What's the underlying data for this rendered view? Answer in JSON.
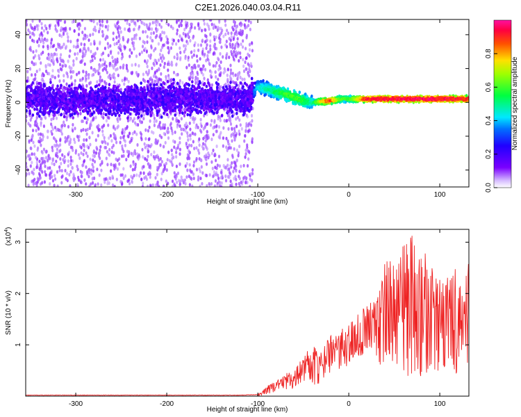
{
  "chart_data": [
    {
      "type": "heatmap",
      "title": "C2E1.2026.040.03.04.R11",
      "xlabel": "Height of straight line (km)",
      "ylabel": "Frequency (Hz)",
      "xlim": [
        -355,
        132
      ],
      "ylim": [
        -50,
        49
      ],
      "x_ticks": [
        -300,
        -200,
        -100,
        0,
        100
      ],
      "x_tick_labels": [
        "-300",
        "-200",
        "-100",
        "0",
        "100"
      ],
      "y_ticks": [
        -40,
        -20,
        0,
        20,
        40
      ],
      "y_tick_labels": [
        "-40",
        "-20",
        "0",
        "20",
        "40"
      ],
      "colorbar": {
        "label": "Normalized spectral amplitude",
        "range": [
          0,
          1
        ],
        "ticks": [
          0.0,
          0.2,
          0.4,
          0.6,
          0.8
        ],
        "tick_labels": [
          "0.0",
          "0.2",
          "0.4",
          "0.6",
          "0.8"
        ]
      },
      "ridge": {
        "x": [
          -355,
          -300,
          -250,
          -200,
          -150,
          -110,
          -100,
          -90,
          -80,
          -70,
          -60,
          -50,
          -40,
          -30,
          -20,
          -10,
          0,
          20,
          50,
          100,
          132
        ],
        "frequency": [
          2,
          1,
          1.5,
          2,
          2,
          2,
          9,
          8,
          6,
          5,
          3,
          1,
          0,
          0.5,
          1,
          2,
          2,
          2,
          2,
          2,
          2
        ],
        "amplitude": [
          0.22,
          0.22,
          0.22,
          0.22,
          0.2,
          0.22,
          0.45,
          0.5,
          0.55,
          0.6,
          0.62,
          0.6,
          0.5,
          0.8,
          0.9,
          0.65,
          0.6,
          0.95,
          0.98,
          0.97,
          0.95
        ]
      }
    },
    {
      "type": "line",
      "xlabel": "Height of straight line (km)",
      "ylabel": "SNR (10 * v/v)",
      "y_multiplier": "(x10",
      "y_multiplier_exp": "4",
      "y_multiplier_close": ")",
      "xlim": [
        -355,
        132
      ],
      "ylim": [
        0,
        3.25
      ],
      "x_ticks": [
        -300,
        -200,
        -100,
        0,
        100
      ],
      "x_tick_labels": [
        "-300",
        "-200",
        "-100",
        "0",
        "100"
      ],
      "y_ticks": [
        1,
        2,
        3
      ],
      "y_tick_labels": [
        "1",
        "2",
        "3"
      ],
      "series": [
        {
          "name": "SNR",
          "color": "#ee2222",
          "x": [
            -355,
            -300,
            -200,
            -120,
            -100,
            -95,
            -90,
            -85,
            -80,
            -75,
            -70,
            -65,
            -60,
            -55,
            -50,
            -45,
            -40,
            -35,
            -30,
            -25,
            -20,
            -15,
            -10,
            -5,
            0,
            5,
            10,
            15,
            20,
            25,
            30,
            35,
            40,
            45,
            50,
            55,
            60,
            65,
            70,
            75,
            80,
            85,
            90,
            95,
            100,
            105,
            110,
            115,
            120,
            125,
            132
          ],
          "y": [
            0.02,
            0.02,
            0.02,
            0.02,
            0.03,
            0.05,
            0.12,
            0.18,
            0.22,
            0.28,
            0.32,
            0.38,
            0.42,
            0.5,
            0.55,
            0.62,
            0.6,
            0.58,
            0.55,
            0.6,
            0.68,
            0.72,
            0.8,
            0.85,
            0.95,
            1.0,
            1.05,
            1.1,
            1.15,
            1.25,
            1.3,
            1.35,
            1.45,
            1.55,
            1.5,
            1.65,
            1.7,
            1.8,
            1.75,
            1.7,
            1.6,
            1.55,
            1.5,
            1.4,
            1.35,
            1.3,
            1.35,
            1.4,
            1.5,
            1.55,
            1.5
          ],
          "envelope_upper": [
            0.02,
            0.02,
            0.02,
            0.03,
            0.05,
            0.1,
            0.2,
            0.25,
            0.3,
            0.35,
            0.42,
            0.5,
            0.55,
            0.65,
            0.8,
            0.95,
            1.02,
            0.9,
            0.85,
            1.05,
            1.2,
            1.15,
            1.3,
            1.35,
            1.4,
            1.5,
            1.6,
            1.7,
            1.75,
            1.85,
            2.0,
            2.2,
            2.7,
            2.9,
            2.5,
            2.7,
            3.2,
            3.05,
            3.2,
            2.7,
            2.9,
            2.8,
            2.6,
            2.3,
            2.4,
            2.2,
            2.4,
            2.5,
            2.55,
            2.4,
            2.6
          ],
          "envelope_lower": [
            0.0,
            0.0,
            0.0,
            0.0,
            0.0,
            0.0,
            0.02,
            0.05,
            0.08,
            0.1,
            0.12,
            0.1,
            0.15,
            0.2,
            0.25,
            0.3,
            0.25,
            0.2,
            0.3,
            0.35,
            0.4,
            0.45,
            0.5,
            0.55,
            0.6,
            0.75,
            0.8,
            0.75,
            0.85,
            0.9,
            0.75,
            0.6,
            0.7,
            0.8,
            0.6,
            0.4,
            0.5,
            0.3,
            0.35,
            0.5,
            0.35,
            0.4,
            0.55,
            0.45,
            0.5,
            0.55,
            0.45,
            0.5,
            0.35,
            0.55,
            0.6
          ]
        }
      ]
    }
  ]
}
